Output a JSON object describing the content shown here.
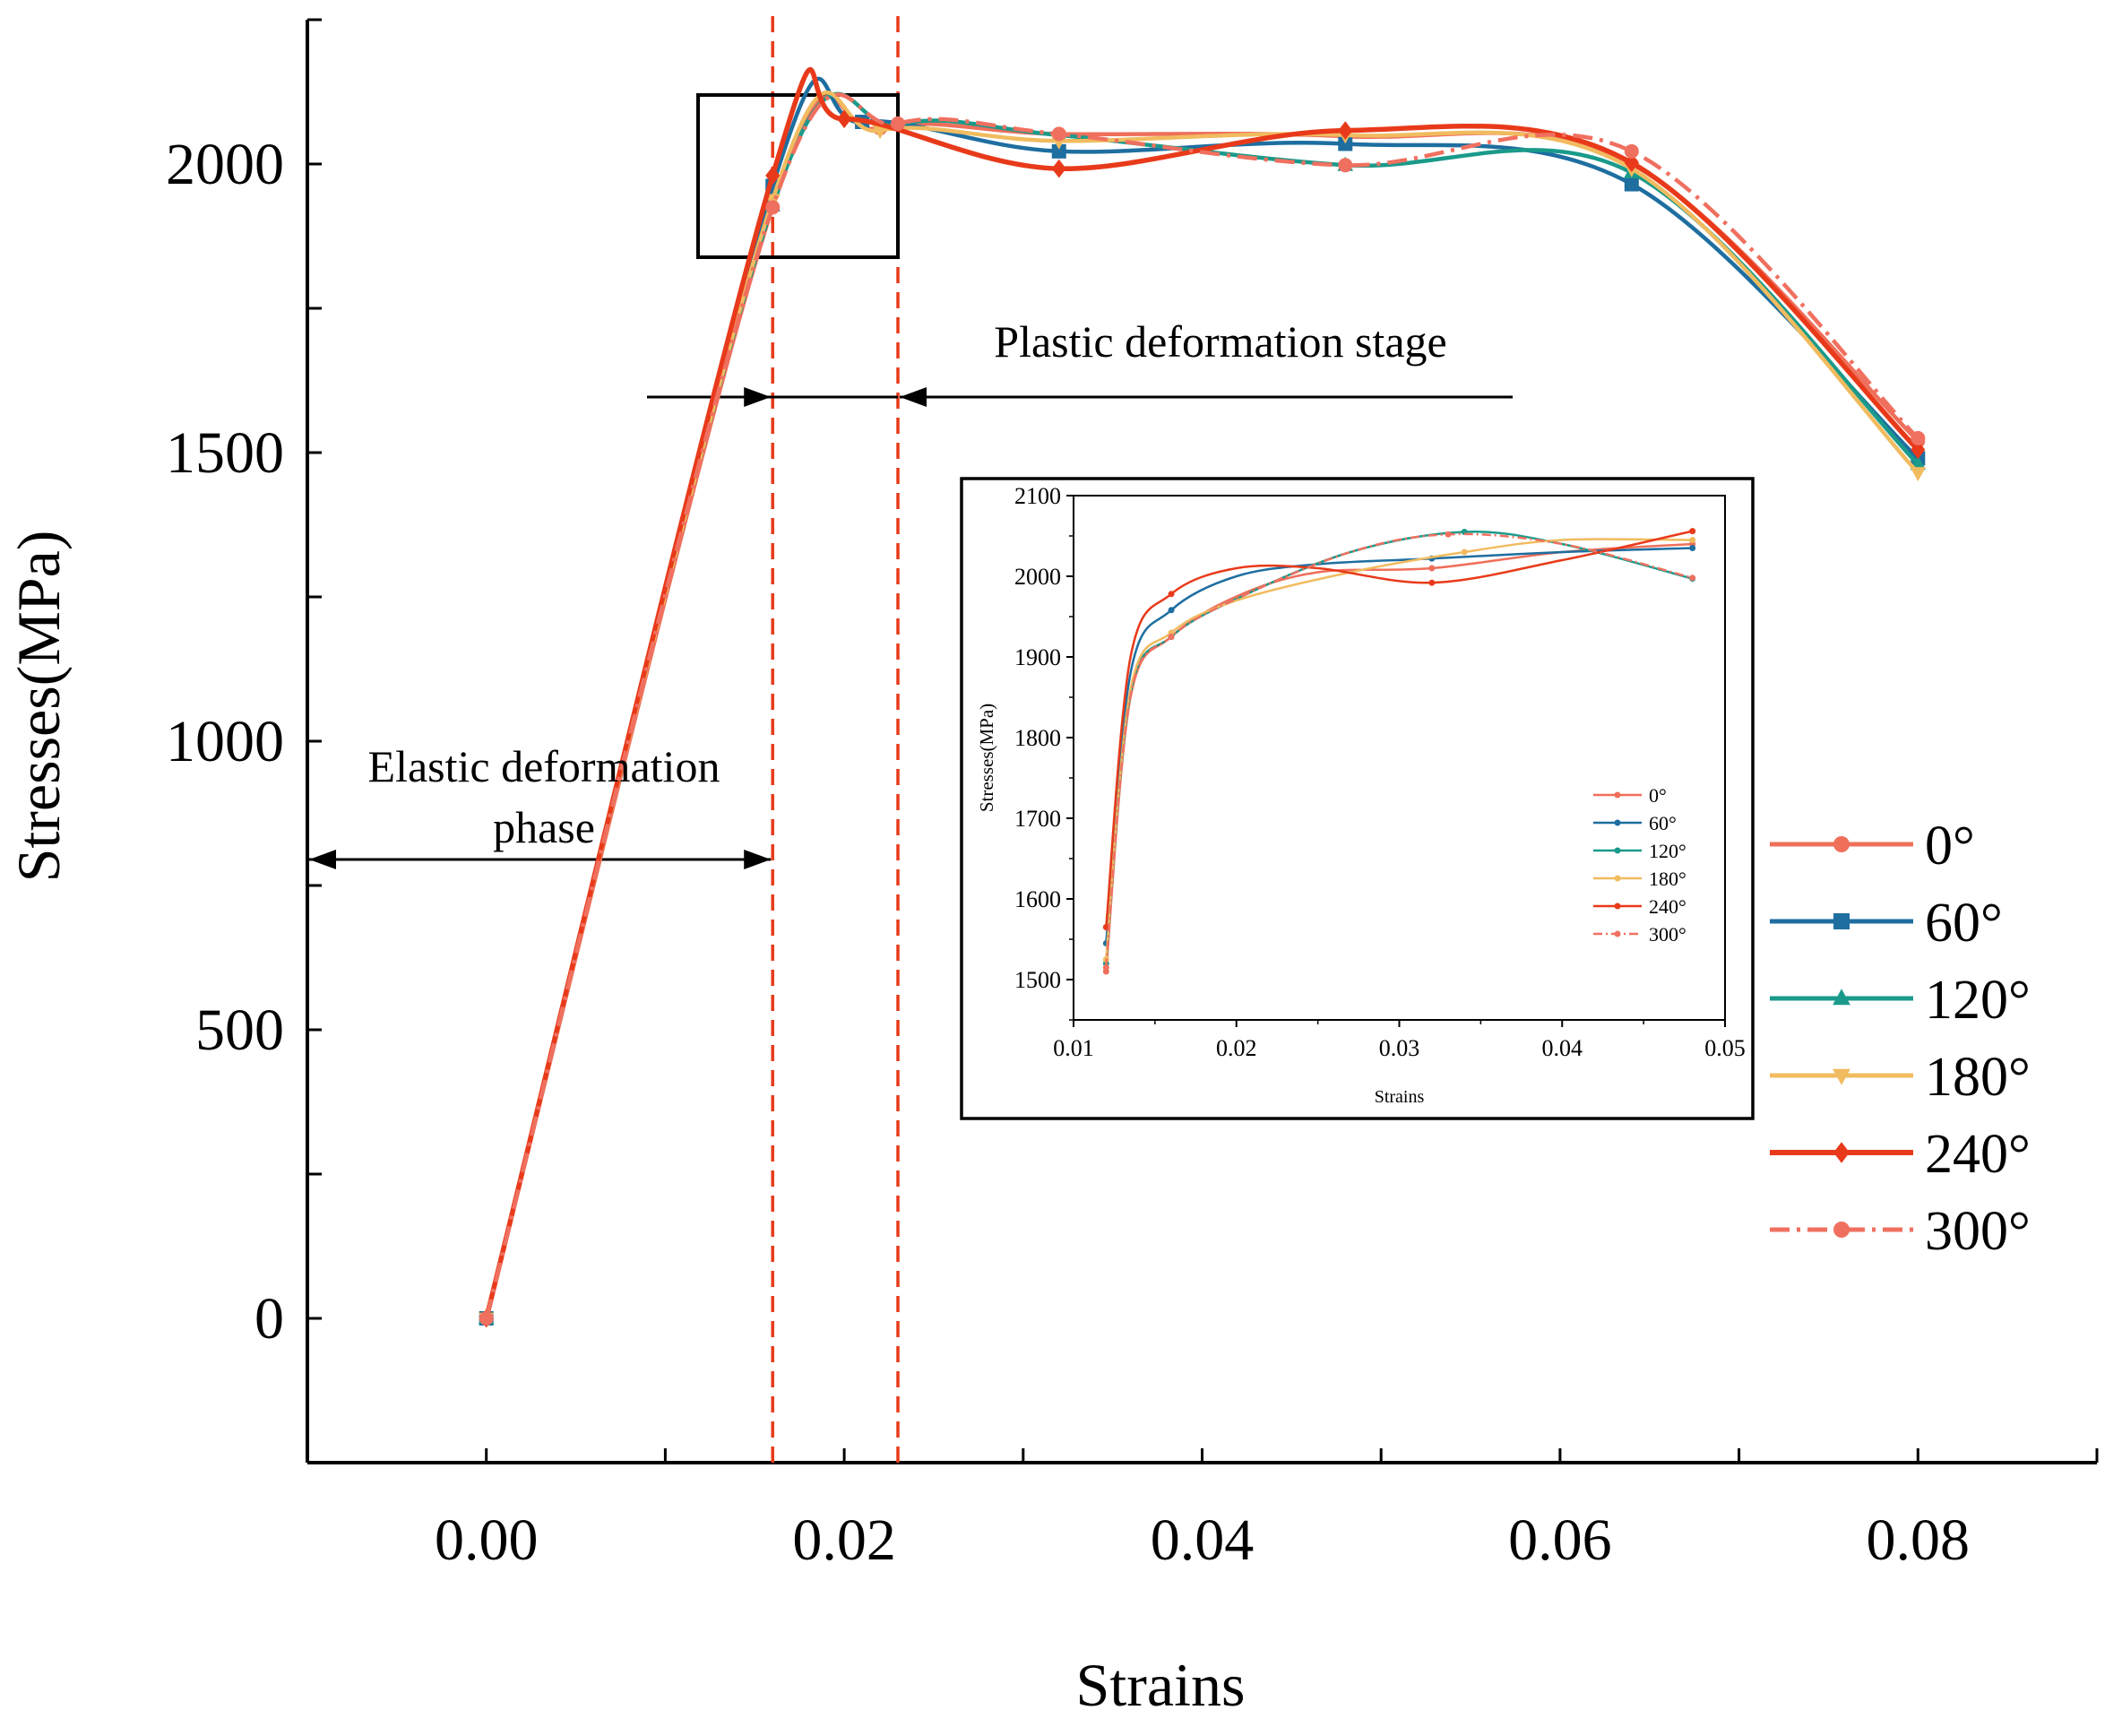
{
  "chart_data": {
    "type": "line",
    "xlabel": "Strains",
    "ylabel": "Stresses(MPa)",
    "xlim": [
      -0.01,
      0.09
    ],
    "ylim": [
      -250,
      2250
    ],
    "x_ticks": [
      "0.00",
      "0.02",
      "0.04",
      "0.06",
      "0.08"
    ],
    "y_ticks": [
      "0",
      "500",
      "1000",
      "1500",
      "2000"
    ],
    "legend_position": "right",
    "annotations": {
      "elastic": "Elastic deformation phase",
      "elastic_line1": "Elastic deformation",
      "elastic_line2": "phase",
      "plastic": "Plastic deformation stage"
    },
    "stage_boundaries": [
      0.016,
      0.023
    ],
    "series": [
      {
        "name": "0°",
        "color": "#ef6f5a",
        "dash": false,
        "marker": "circle",
        "points": [
          [
            0,
            0
          ],
          [
            0.016,
            1925
          ],
          [
            0.022,
            2062
          ],
          [
            0.032,
            2052
          ],
          [
            0.048,
            2048
          ],
          [
            0.064,
            2000
          ],
          [
            0.08,
            1520
          ]
        ]
      },
      {
        "name": "60°",
        "color": "#1e6ea0",
        "dash": false,
        "marker": "square",
        "points": [
          [
            0,
            0
          ],
          [
            0.016,
            1962
          ],
          [
            0.021,
            2073
          ],
          [
            0.032,
            2022
          ],
          [
            0.048,
            2035
          ],
          [
            0.064,
            1965
          ],
          [
            0.08,
            1490
          ]
        ]
      },
      {
        "name": "120°",
        "color": "#1a9a8a",
        "dash": false,
        "marker": "triangle",
        "points": [
          [
            0,
            0
          ],
          [
            0.016,
            1928
          ],
          [
            0.023,
            2068
          ],
          [
            0.032,
            2050
          ],
          [
            0.048,
            1998
          ],
          [
            0.064,
            1985
          ],
          [
            0.08,
            1480
          ]
        ]
      },
      {
        "name": "180°",
        "color": "#f1bb5f",
        "dash": false,
        "marker": "triangle-down",
        "points": [
          [
            0,
            0
          ],
          [
            0.016,
            1938
          ],
          [
            0.022,
            2058
          ],
          [
            0.032,
            2040
          ],
          [
            0.048,
            2050
          ],
          [
            0.064,
            1992
          ],
          [
            0.08,
            1465
          ]
        ]
      },
      {
        "name": "240°",
        "color": "#e83a1a",
        "dash": false,
        "marker": "diamond",
        "points": [
          [
            0,
            0
          ],
          [
            0.016,
            1980
          ],
          [
            0.02,
            2078
          ],
          [
            0.032,
            1992
          ],
          [
            0.048,
            2058
          ],
          [
            0.064,
            2002
          ],
          [
            0.08,
            1505
          ]
        ]
      },
      {
        "name": "300°",
        "color": "#f07060",
        "dash": true,
        "marker": "circle",
        "points": [
          [
            0,
            0
          ],
          [
            0.016,
            1925
          ],
          [
            0.023,
            2070
          ],
          [
            0.032,
            2052
          ],
          [
            0.048,
            1998
          ],
          [
            0.064,
            2022
          ],
          [
            0.08,
            1525
          ]
        ]
      }
    ],
    "inset": {
      "xlabel": "Strains",
      "ylabel": "Stresses(MPa)",
      "xlim": [
        0.01,
        0.05
      ],
      "ylim": [
        1450,
        2100
      ],
      "x_ticks": [
        "0.01",
        "0.02",
        "0.03",
        "0.04",
        "0.05"
      ],
      "y_ticks": [
        "1500",
        "1600",
        "1700",
        "1800",
        "1900",
        "2000",
        "2100"
      ],
      "series": [
        {
          "name": "0°",
          "color": "#ef6f5a",
          "dash": false,
          "points": [
            [
              0.012,
              1510
            ],
            [
              0.0135,
              1850
            ],
            [
              0.016,
              1925
            ],
            [
              0.02,
              1975
            ],
            [
              0.025,
              2005
            ],
            [
              0.032,
              2010
            ],
            [
              0.04,
              2030
            ],
            [
              0.048,
              2040
            ]
          ]
        },
        {
          "name": "60°",
          "color": "#1e6ea0",
          "dash": false,
          "points": [
            [
              0.012,
              1545
            ],
            [
              0.0135,
              1880
            ],
            [
              0.016,
              1958
            ],
            [
              0.02,
              2000
            ],
            [
              0.025,
              2015
            ],
            [
              0.032,
              2022
            ],
            [
              0.04,
              2030
            ],
            [
              0.048,
              2035
            ]
          ]
        },
        {
          "name": "120°",
          "color": "#1a9a8a",
          "dash": false,
          "points": [
            [
              0.012,
              1520
            ],
            [
              0.0135,
              1855
            ],
            [
              0.016,
              1925
            ],
            [
              0.02,
              1972
            ],
            [
              0.027,
              2030
            ],
            [
              0.034,
              2055
            ],
            [
              0.04,
              2040
            ],
            [
              0.048,
              1997
            ]
          ]
        },
        {
          "name": "180°",
          "color": "#f1bb5f",
          "dash": false,
          "points": [
            [
              0.012,
              1525
            ],
            [
              0.0135,
              1860
            ],
            [
              0.016,
              1930
            ],
            [
              0.02,
              1970
            ],
            [
              0.027,
              2005
            ],
            [
              0.034,
              2030
            ],
            [
              0.04,
              2045
            ],
            [
              0.048,
              2045
            ]
          ]
        },
        {
          "name": "240°",
          "color": "#e83a1a",
          "dash": false,
          "points": [
            [
              0.012,
              1565
            ],
            [
              0.0135,
              1900
            ],
            [
              0.016,
              1978
            ],
            [
              0.02,
              2010
            ],
            [
              0.025,
              2010
            ],
            [
              0.032,
              1992
            ],
            [
              0.04,
              2020
            ],
            [
              0.048,
              2056
            ]
          ]
        },
        {
          "name": "300°",
          "color": "#f07060",
          "dash": true,
          "points": [
            [
              0.012,
              1515
            ],
            [
              0.0135,
              1852
            ],
            [
              0.016,
              1925
            ],
            [
              0.02,
              1972
            ],
            [
              0.027,
              2030
            ],
            [
              0.033,
              2052
            ],
            [
              0.04,
              2040
            ],
            [
              0.048,
              1998
            ]
          ]
        }
      ]
    }
  }
}
